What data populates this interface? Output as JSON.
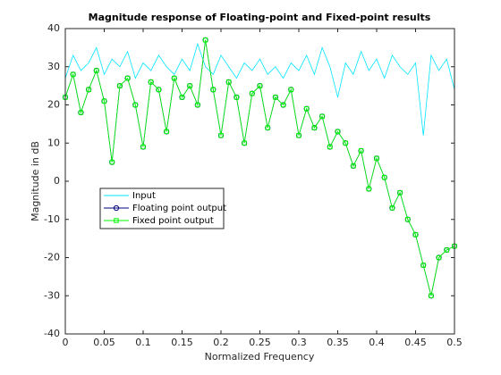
{
  "chart_data": {
    "type": "line",
    "title": "Magnitude response of Floating-point and Fixed-point results",
    "xlabel": "Normalized Frequency",
    "ylabel": "Magnitude in dB",
    "x": [
      0,
      0.01,
      0.02,
      0.03,
      0.04,
      0.05,
      0.06,
      0.07,
      0.08,
      0.09,
      0.1,
      0.11,
      0.12,
      0.13,
      0.14,
      0.15,
      0.16,
      0.17,
      0.18,
      0.19,
      0.2,
      0.21,
      0.22,
      0.23,
      0.24,
      0.25,
      0.26,
      0.27,
      0.28,
      0.29,
      0.3,
      0.31,
      0.32,
      0.33,
      0.34,
      0.35,
      0.36,
      0.37,
      0.38,
      0.39,
      0.4,
      0.41,
      0.42,
      0.43,
      0.44,
      0.45,
      0.46,
      0.47,
      0.48,
      0.49,
      0.5
    ],
    "series": [
      {
        "name": "Input",
        "color": "#00e5ff",
        "marker": "none",
        "values": [
          27,
          33,
          29,
          31,
          35,
          28,
          32,
          30,
          34,
          27,
          31,
          29,
          33,
          30,
          28,
          32,
          29,
          36,
          30,
          28,
          33,
          30,
          27,
          31,
          29,
          32,
          28,
          30,
          27,
          31,
          29,
          33,
          28,
          35,
          30,
          22,
          31,
          28,
          34,
          29,
          32,
          27,
          33,
          30,
          28,
          31,
          12,
          33,
          29,
          32,
          24
        ]
      },
      {
        "name": "Floating point output",
        "color": "#000080",
        "marker": "circle",
        "values": [
          22,
          28,
          18,
          24,
          29,
          21,
          5,
          25,
          27,
          20,
          9,
          26,
          24,
          13,
          27,
          22,
          25,
          20,
          37,
          24,
          12,
          26,
          22,
          10,
          23,
          25,
          14,
          22,
          20,
          24,
          12,
          19,
          14,
          17,
          9,
          13,
          10,
          4,
          8,
          -2,
          6,
          1,
          -7,
          -3,
          -10,
          -14,
          -22,
          -30,
          -20,
          -18,
          -17
        ]
      },
      {
        "name": "Fixed point output",
        "color": "#00ff00",
        "marker": "square",
        "values": [
          22,
          28,
          18,
          24,
          29,
          21,
          5,
          25,
          27,
          20,
          9,
          26,
          24,
          13,
          27,
          22,
          25,
          20,
          37,
          24,
          12,
          26,
          22,
          10,
          23,
          25,
          14,
          22,
          20,
          24,
          12,
          19,
          14,
          17,
          9,
          13,
          10,
          4,
          8,
          -2,
          6,
          1,
          -7,
          -3,
          -10,
          -14,
          -22,
          -30,
          -20,
          -18,
          -17
        ]
      }
    ],
    "xlim": [
      0,
      0.5
    ],
    "xticks": [
      0,
      0.05,
      0.1,
      0.15,
      0.2,
      0.25,
      0.3,
      0.35,
      0.4,
      0.45,
      0.5
    ],
    "ylim": [
      -40,
      40
    ],
    "yticks": [
      -40,
      -30,
      -20,
      -10,
      0,
      10,
      20,
      30,
      40
    ],
    "grid": false
  }
}
